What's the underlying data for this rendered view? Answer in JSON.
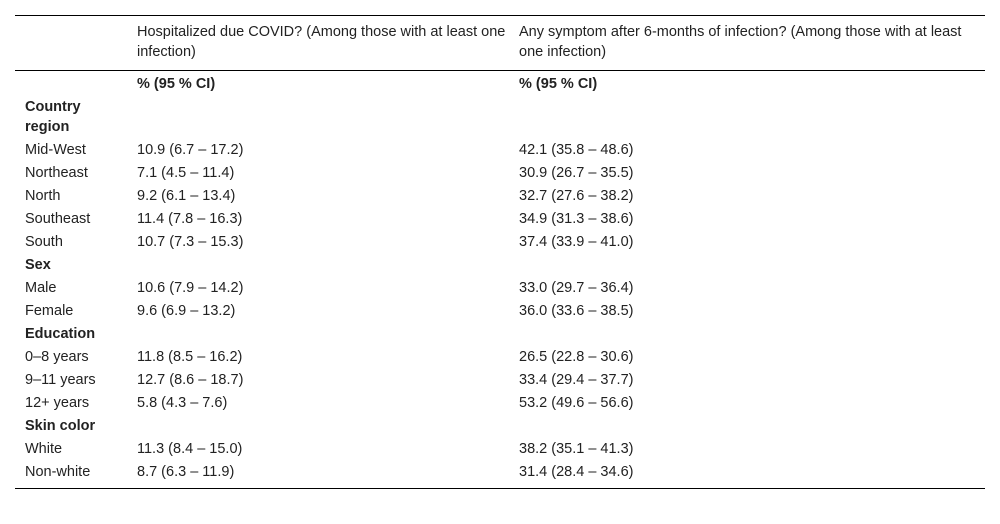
{
  "table": {
    "columns": [
      "",
      "Hospitalized due COVID? (Among those with at least one infection)",
      "Any symptom after 6-months of infection? (Among those with at least one infection)"
    ],
    "units": [
      "",
      "% (95 % CI)",
      "% (95 % CI)"
    ],
    "sections": [
      {
        "title": "Country region",
        "rows": [
          [
            "Mid-West",
            "10.9 (6.7 – 17.2)",
            "42.1 (35.8 – 48.6)"
          ],
          [
            "Northeast",
            "7.1 (4.5 – 11.4)",
            "30.9 (26.7 – 35.5)"
          ],
          [
            "North",
            "9.2 (6.1 – 13.4)",
            "32.7 (27.6 – 38.2)"
          ],
          [
            "Southeast",
            "11.4 (7.8 – 16.3)",
            "34.9 (31.3 – 38.6)"
          ],
          [
            "South",
            "10.7 (7.3 – 15.3)",
            "37.4 (33.9 – 41.0)"
          ]
        ]
      },
      {
        "title": "Sex",
        "rows": [
          [
            "Male",
            "10.6 (7.9 – 14.2)",
            "33.0 (29.7 – 36.4)"
          ],
          [
            "Female",
            "9.6 (6.9 – 13.2)",
            "36.0 (33.6 – 38.5)"
          ]
        ]
      },
      {
        "title": "Education",
        "rows": [
          [
            "0–8 years",
            "11.8 (8.5 – 16.2)",
            "26.5 (22.8 – 30.6)"
          ],
          [
            "9–11 years",
            "12.7 (8.6 – 18.7)",
            "33.4 (29.4 – 37.7)"
          ],
          [
            "12+ years",
            "5.8 (4.3 – 7.6)",
            "53.2 (49.6 – 56.6)"
          ]
        ]
      },
      {
        "title": "Skin color",
        "rows": [
          [
            "White",
            "11.3 (8.4 – 15.0)",
            "38.2 (35.1 – 41.3)"
          ],
          [
            "Non-white",
            "8.7 (6.3 – 11.9)",
            "31.4 (28.4 – 34.6)"
          ]
        ]
      }
    ]
  }
}
